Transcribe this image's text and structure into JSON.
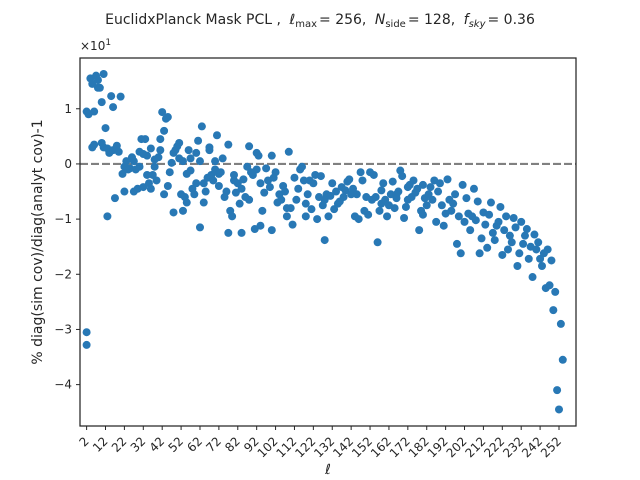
{
  "chart_data": {
    "type": "scatter",
    "title_parts": {
      "prefix": "EuclidxPlanck Mask PCL ,",
      "lmax_symbol": "ℓ",
      "lmax_sub": "max",
      "lmax_value": "= 256,",
      "nside_symbol": "N",
      "nside_sub": "side",
      "nside_value": "= 128,",
      "fsky_symbol": "f",
      "fsky_sub": "sky",
      "fsky_value": "= 0.36"
    },
    "xlabel": "ℓ",
    "ylabel": "% diag(sim cov)/diag(analyt cov)-1",
    "offset_text": {
      "base": "×10",
      "exp": "1"
    },
    "xlim": [
      -1.5,
      261
    ],
    "ylim": [
      -4.75,
      1.92
    ],
    "x_ticks": [
      2,
      12,
      22,
      32,
      42,
      52,
      62,
      72,
      82,
      92,
      102,
      112,
      122,
      132,
      142,
      152,
      162,
      172,
      182,
      192,
      202,
      212,
      222,
      232,
      242,
      252
    ],
    "y_ticks": [
      -4,
      -3,
      -2,
      -1,
      0,
      1
    ],
    "y_tick_labels": [
      "−4",
      "−3",
      "−2",
      "−1",
      "0",
      "1"
    ],
    "reference_line": {
      "y": 0,
      "style": "dashed",
      "color": "#808080"
    },
    "marker_color": "#2878b5",
    "points": [
      [
        2,
        -3.05
      ],
      [
        2,
        -3.28
      ],
      [
        2,
        0.95
      ],
      [
        3,
        0.9
      ],
      [
        4,
        1.55
      ],
      [
        5,
        1.45
      ],
      [
        5,
        0.3
      ],
      [
        6,
        0.35
      ],
      [
        6,
        0.95
      ],
      [
        7,
        1.6
      ],
      [
        8,
        1.38
      ],
      [
        8,
        1.52
      ],
      [
        9,
        1.38
      ],
      [
        10,
        1.12
      ],
      [
        10,
        0.38
      ],
      [
        11,
        1.63
      ],
      [
        11,
        0.3
      ],
      [
        12,
        0.65
      ],
      [
        13,
        0.28
      ],
      [
        13,
        -0.95
      ],
      [
        14,
        0.2
      ],
      [
        15,
        1.23
      ],
      [
        16,
        1.03
      ],
      [
        16,
        0.25
      ],
      [
        17,
        -0.62
      ],
      [
        18,
        0.33
      ],
      [
        19,
        0.22
      ],
      [
        20,
        1.22
      ],
      [
        21,
        -0.18
      ],
      [
        22,
        -0.5
      ],
      [
        22,
        -0.05
      ],
      [
        23,
        0.05
      ],
      [
        24,
        -0.1
      ],
      [
        25,
        -0.08
      ],
      [
        26,
        0.12
      ],
      [
        27,
        -0.5
      ],
      [
        27,
        0.05
      ],
      [
        28,
        -0.1
      ],
      [
        29,
        -0.45
      ],
      [
        30,
        -0.05
      ],
      [
        30,
        0.22
      ],
      [
        31,
        0.45
      ],
      [
        32,
        -0.42
      ],
      [
        32,
        0.18
      ],
      [
        33,
        0.45
      ],
      [
        34,
        -0.2
      ],
      [
        34,
        0.15
      ],
      [
        35,
        -0.35
      ],
      [
        36,
        0.28
      ],
      [
        36,
        -0.45
      ],
      [
        37,
        -0.2
      ],
      [
        38,
        -0.05
      ],
      [
        38,
        0.08
      ],
      [
        39,
        -0.3
      ],
      [
        40,
        0.12
      ],
      [
        41,
        0.45
      ],
      [
        41,
        0.25
      ],
      [
        42,
        0.94
      ],
      [
        43,
        -0.55
      ],
      [
        43,
        0.6
      ],
      [
        44,
        0.82
      ],
      [
        45,
        -0.4
      ],
      [
        45,
        0.85
      ],
      [
        46,
        -0.15
      ],
      [
        47,
        0.02
      ],
      [
        48,
        0.2
      ],
      [
        48,
        -0.88
      ],
      [
        49,
        0.25
      ],
      [
        50,
        0.32
      ],
      [
        51,
        0.1
      ],
      [
        51,
        0.38
      ],
      [
        52,
        -0.55
      ],
      [
        53,
        -0.85
      ],
      [
        53,
        0.05
      ],
      [
        54,
        -0.6
      ],
      [
        55,
        -0.18
      ],
      [
        55,
        -0.7
      ],
      [
        56,
        0.25
      ],
      [
        57,
        0.1
      ],
      [
        57,
        -0.12
      ],
      [
        58,
        -0.45
      ],
      [
        59,
        -0.55
      ],
      [
        60,
        0.2
      ],
      [
        60,
        -0.35
      ],
      [
        61,
        0.42
      ],
      [
        62,
        -1.15
      ],
      [
        62,
        0.05
      ],
      [
        63,
        0.68
      ],
      [
        64,
        -0.7
      ],
      [
        64,
        -0.35
      ],
      [
        65,
        -0.5
      ],
      [
        66,
        -0.25
      ],
      [
        67,
        0.25
      ],
      [
        67,
        0.3
      ],
      [
        68,
        -0.2
      ],
      [
        69,
        -0.3
      ],
      [
        70,
        -0.1
      ],
      [
        70,
        0.05
      ],
      [
        71,
        0.52
      ],
      [
        72,
        -0.4
      ],
      [
        72,
        -0.18
      ],
      [
        73,
        -0.15
      ],
      [
        74,
        0.1
      ],
      [
        75,
        -0.6
      ],
      [
        76,
        -0.5
      ],
      [
        77,
        0.35
      ],
      [
        77,
        -1.25
      ],
      [
        78,
        -0.85
      ],
      [
        79,
        -0.95
      ],
      [
        80,
        -0.3
      ],
      [
        80,
        -0.2
      ],
      [
        81,
        -0.52
      ],
      [
        82,
        -0.35
      ],
      [
        83,
        -0.72
      ],
      [
        84,
        -0.45
      ],
      [
        84,
        -1.25
      ],
      [
        85,
        -0.28
      ],
      [
        86,
        -0.6
      ],
      [
        87,
        -0.05
      ],
      [
        88,
        0.32
      ],
      [
        88,
        -0.65
      ],
      [
        89,
        -0.15
      ],
      [
        90,
        -0.2
      ],
      [
        91,
        -1.18
      ],
      [
        92,
        0.2
      ],
      [
        92,
        -0.1
      ],
      [
        93,
        0.15
      ],
      [
        94,
        -1.12
      ],
      [
        94,
        -0.35
      ],
      [
        95,
        -0.85
      ],
      [
        96,
        -0.52
      ],
      [
        97,
        -0.08
      ],
      [
        98,
        -0.3
      ],
      [
        99,
        -0.42
      ],
      [
        100,
        0.15
      ],
      [
        100,
        -1.2
      ],
      [
        101,
        -0.25
      ],
      [
        102,
        -0.15
      ],
      [
        103,
        -0.7
      ],
      [
        104,
        -0.55
      ],
      [
        105,
        -0.65
      ],
      [
        106,
        -0.4
      ],
      [
        107,
        -0.5
      ],
      [
        108,
        -0.95
      ],
      [
        108,
        -0.8
      ],
      [
        109,
        0.22
      ],
      [
        110,
        -0.8
      ],
      [
        111,
        -1.1
      ],
      [
        112,
        -0.25
      ],
      [
        113,
        -0.65
      ],
      [
        114,
        -0.45
      ],
      [
        115,
        -0.1
      ],
      [
        116,
        -0.05
      ],
      [
        117,
        -0.3
      ],
      [
        118,
        -0.72
      ],
      [
        118,
        -0.95
      ],
      [
        119,
        -0.55
      ],
      [
        120,
        -0.3
      ],
      [
        121,
        -0.82
      ],
      [
        122,
        -0.35
      ],
      [
        123,
        -0.2
      ],
      [
        124,
        -1.0
      ],
      [
        125,
        -0.6
      ],
      [
        126,
        -0.22
      ],
      [
        127,
        -0.75
      ],
      [
        128,
        -1.38
      ],
      [
        128,
        -0.65
      ],
      [
        129,
        -0.55
      ],
      [
        130,
        -0.95
      ],
      [
        131,
        -0.58
      ],
      [
        132,
        -0.35
      ],
      [
        133,
        -0.82
      ],
      [
        134,
        -0.5
      ],
      [
        135,
        -0.72
      ],
      [
        136,
        -0.68
      ],
      [
        137,
        -0.42
      ],
      [
        138,
        -0.6
      ],
      [
        139,
        -0.48
      ],
      [
        140,
        -0.32
      ],
      [
        141,
        -0.28
      ],
      [
        142,
        -0.55
      ],
      [
        143,
        -0.45
      ],
      [
        144,
        -0.95
      ],
      [
        145,
        -0.55
      ],
      [
        146,
        -1.0
      ],
      [
        147,
        -0.15
      ],
      [
        148,
        -0.3
      ],
      [
        149,
        -0.85
      ],
      [
        150,
        -0.6
      ],
      [
        151,
        -0.92
      ],
      [
        152,
        -0.15
      ],
      [
        153,
        -0.65
      ],
      [
        154,
        -0.2
      ],
      [
        155,
        -0.6
      ],
      [
        156,
        -1.42
      ],
      [
        157,
        -0.85
      ],
      [
        158,
        -0.72
      ],
      [
        158,
        -0.48
      ],
      [
        159,
        -0.35
      ],
      [
        160,
        -0.65
      ],
      [
        161,
        -0.95
      ],
      [
        162,
        -0.75
      ],
      [
        163,
        -0.55
      ],
      [
        164,
        -0.32
      ],
      [
        165,
        -0.8
      ],
      [
        166,
        -0.62
      ],
      [
        166,
        -0.55
      ],
      [
        167,
        -0.5
      ],
      [
        168,
        -0.12
      ],
      [
        169,
        -0.22
      ],
      [
        170,
        -0.98
      ],
      [
        171,
        -0.78
      ],
      [
        172,
        -0.42
      ],
      [
        172,
        -0.65
      ],
      [
        173,
        -0.38
      ],
      [
        174,
        -0.6
      ],
      [
        175,
        -0.3
      ],
      [
        176,
        -0.52
      ],
      [
        177,
        -0.45
      ],
      [
        178,
        -1.2
      ],
      [
        179,
        -0.85
      ],
      [
        180,
        -0.38
      ],
      [
        180,
        -0.92
      ],
      [
        181,
        -0.62
      ],
      [
        182,
        -0.75
      ],
      [
        183,
        -0.55
      ],
      [
        184,
        -0.42
      ],
      [
        185,
        -0.65
      ],
      [
        186,
        -0.3
      ],
      [
        187,
        -1.05
      ],
      [
        188,
        -0.5
      ],
      [
        189,
        -0.35
      ],
      [
        190,
        -0.75
      ],
      [
        191,
        -1.12
      ],
      [
        192,
        -0.9
      ],
      [
        193,
        -0.28
      ],
      [
        194,
        -0.65
      ],
      [
        195,
        -0.85
      ],
      [
        196,
        -0.72
      ],
      [
        197,
        -0.55
      ],
      [
        198,
        -1.45
      ],
      [
        199,
        -0.95
      ],
      [
        200,
        -1.62
      ],
      [
        201,
        -0.38
      ],
      [
        202,
        -1.05
      ],
      [
        203,
        -0.62
      ],
      [
        204,
        -0.9
      ],
      [
        205,
        -1.2
      ],
      [
        206,
        -0.95
      ],
      [
        207,
        -0.45
      ],
      [
        208,
        -1.02
      ],
      [
        209,
        -0.68
      ],
      [
        210,
        -1.62
      ],
      [
        211,
        -1.35
      ],
      [
        212,
        -0.88
      ],
      [
        213,
        -1.1
      ],
      [
        214,
        -1.52
      ],
      [
        215,
        -0.92
      ],
      [
        216,
        -0.7
      ],
      [
        217,
        -1.25
      ],
      [
        218,
        -1.38
      ],
      [
        219,
        -1.12
      ],
      [
        220,
        -1.05
      ],
      [
        221,
        -0.78
      ],
      [
        222,
        -1.65
      ],
      [
        223,
        -1.2
      ],
      [
        224,
        -0.95
      ],
      [
        225,
        -1.55
      ],
      [
        226,
        -1.3
      ],
      [
        227,
        -1.42
      ],
      [
        228,
        -0.98
      ],
      [
        229,
        -1.15
      ],
      [
        230,
        -1.85
      ],
      [
        231,
        -1.62
      ],
      [
        232,
        -1.05
      ],
      [
        233,
        -1.45
      ],
      [
        234,
        -1.3
      ],
      [
        235,
        -1.18
      ],
      [
        236,
        -1.72
      ],
      [
        237,
        -1.5
      ],
      [
        238,
        -2.05
      ],
      [
        239,
        -1.28
      ],
      [
        240,
        -1.55
      ],
      [
        241,
        -1.42
      ],
      [
        242,
        -1.72
      ],
      [
        243,
        -1.85
      ],
      [
        244,
        -1.62
      ],
      [
        245,
        -2.25
      ],
      [
        246,
        -1.55
      ],
      [
        247,
        -2.2
      ],
      [
        248,
        -1.75
      ],
      [
        249,
        -2.65
      ],
      [
        250,
        -2.32
      ],
      [
        251,
        -4.1
      ],
      [
        252,
        -4.45
      ],
      [
        253,
        -2.9
      ],
      [
        254,
        -3.55
      ]
    ]
  }
}
